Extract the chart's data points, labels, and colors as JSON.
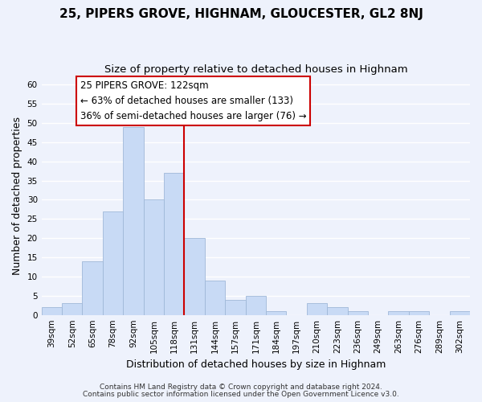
{
  "title": "25, PIPERS GROVE, HIGHNAM, GLOUCESTER, GL2 8NJ",
  "subtitle": "Size of property relative to detached houses in Highnam",
  "xlabel": "Distribution of detached houses by size in Highnam",
  "ylabel": "Number of detached properties",
  "bin_labels": [
    "39sqm",
    "52sqm",
    "65sqm",
    "78sqm",
    "92sqm",
    "105sqm",
    "118sqm",
    "131sqm",
    "144sqm",
    "157sqm",
    "171sqm",
    "184sqm",
    "197sqm",
    "210sqm",
    "223sqm",
    "236sqm",
    "249sqm",
    "263sqm",
    "276sqm",
    "289sqm",
    "302sqm"
  ],
  "bar_heights": [
    2,
    3,
    14,
    27,
    49,
    30,
    37,
    20,
    9,
    4,
    5,
    1,
    0,
    3,
    2,
    1,
    0,
    1,
    1,
    0,
    1
  ],
  "bar_color": "#c8daf5",
  "bar_edge_color": "#a0b8d8",
  "highlight_line_color": "#cc0000",
  "annotation_line1": "25 PIPERS GROVE: 122sqm",
  "annotation_line2": "← 63% of detached houses are smaller (133)",
  "annotation_line3": "36% of semi-detached houses are larger (76) →",
  "footer_line1": "Contains HM Land Registry data © Crown copyright and database right 2024.",
  "footer_line2": "Contains public sector information licensed under the Open Government Licence v3.0.",
  "ylim": [
    0,
    62
  ],
  "yticks": [
    0,
    5,
    10,
    15,
    20,
    25,
    30,
    35,
    40,
    45,
    50,
    55,
    60
  ],
  "background_color": "#eef2fc",
  "grid_color": "#ffffff",
  "title_fontsize": 11,
  "subtitle_fontsize": 9.5,
  "axis_label_fontsize": 9,
  "tick_fontsize": 7.5,
  "annotation_fontsize": 8.5,
  "footer_fontsize": 6.5
}
